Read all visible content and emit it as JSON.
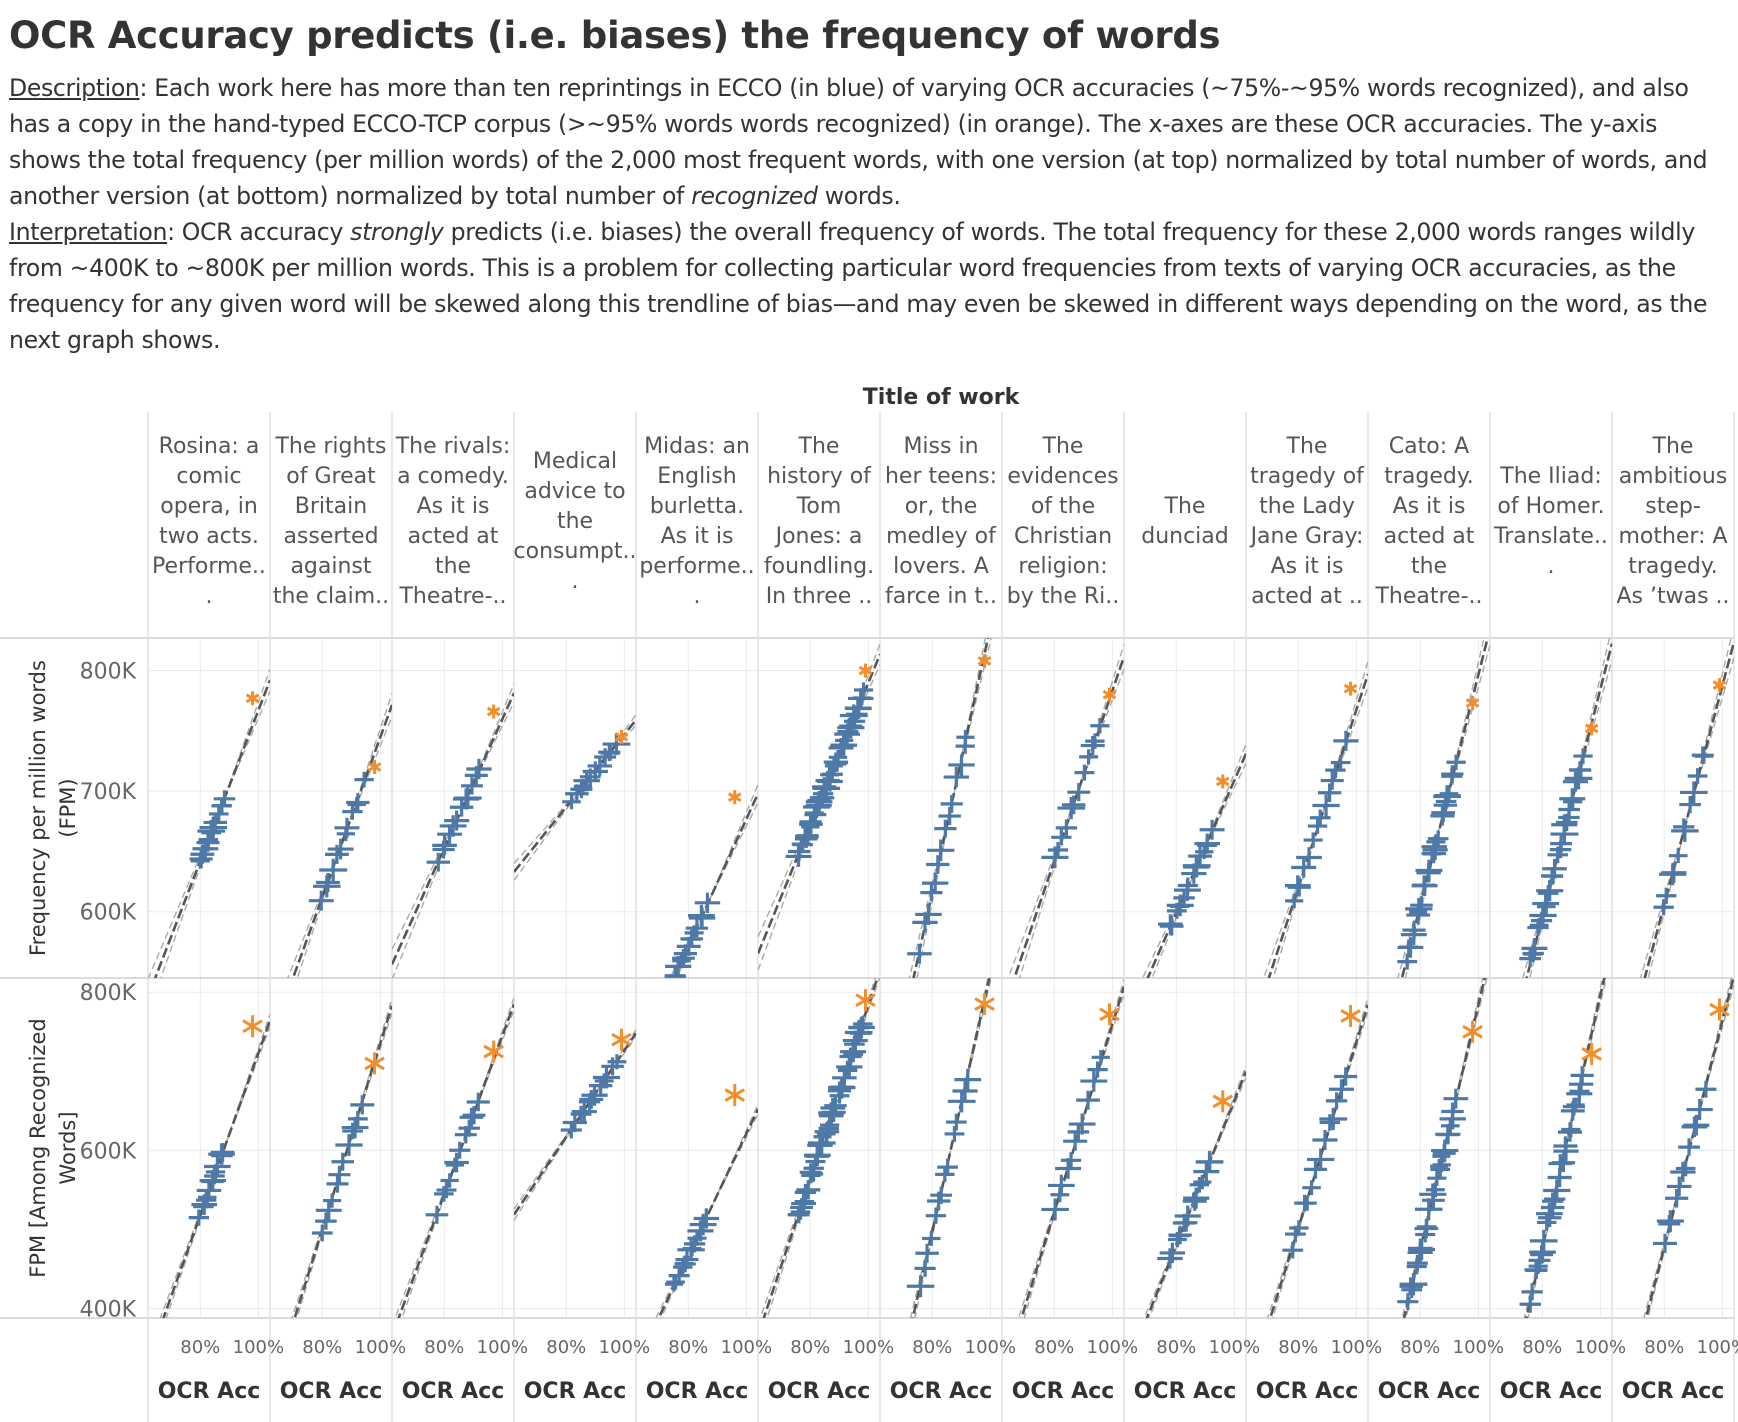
{
  "page": {
    "title": "OCR Accuracy predicts (i.e. biases) the frequency of words",
    "description": {
      "label": "Description",
      "text1": ": Each work here has more than ten reprintings in ECCO (in blue) of varying OCR accuracies (~75%-~95% words recognized), and also has a copy in the hand-typed ECCO-TCP corpus (>~95% words words recognized) (in orange). The x-axes are these OCR accuracies. The y-axis shows the total frequency (per million words) of the 2,000 most frequent words, with one version (at top) normalized by total number of words, and another version (at bottom) normalized by total number of ",
      "emph": "recognized",
      "text2": " words."
    },
    "interpretation": {
      "label": "Interpretation",
      "text1": ": OCR accuracy ",
      "emph": "strongly",
      "text2": " predicts (i.e. biases) the overall frequency of words. The total frequency for these 2,000 words ranges wildly from ~400K to ~800K per million words. This is a problem for collecting particular word frequencies from texts of varying OCR accuracies, as the frequency for any given word will be skewed along this trendline of bias—and may even be skewed in different ways depending on the word, as the next graph shows."
    }
  },
  "chart_data": {
    "type": "scatter",
    "column_header": "Title of work",
    "x_axis": {
      "label": "OCR Acc",
      "ticks": [
        "80%",
        "100%"
      ],
      "range": [
        0.62,
        1.04
      ]
    },
    "rows": [
      {
        "ylabel": [
          "Frequency per million words",
          "(FPM)"
        ],
        "ticks": [
          "800K",
          "700K",
          "600K"
        ],
        "tick_values": [
          800000,
          700000,
          600000
        ],
        "ylim": [
          545000,
          827000
        ]
      },
      {
        "ylabel": [
          "FPM [Among Recognized",
          "Words]"
        ],
        "ticks": [
          "800K",
          "600K",
          "400K"
        ],
        "tick_values": [
          800000,
          600000,
          400000
        ],
        "ylim": [
          388000,
          818000
        ]
      }
    ],
    "series": [
      {
        "name": "ECCO",
        "color": "#4e79a7",
        "marker": "plus"
      },
      {
        "name": "ECCO-TCP",
        "color": "#f28e2b",
        "marker": "asterisk"
      }
    ],
    "works": [
      {
        "title": [
          "Rosina: a",
          "comic",
          "opera, in",
          "two acts.",
          "Performe..",
          "."
        ],
        "ecco": [
          0.8,
          0.88
        ],
        "tcp": 0.98,
        "top": {
          "a": 642000,
          "b": 692000,
          "tcp": 777000,
          "n": 14
        },
        "bot": {
          "a": 518000,
          "b": 600000,
          "tcp": 757000,
          "n": 14
        }
      },
      {
        "title": [
          "The rights",
          "of Great",
          "Britain",
          "asserted",
          "against",
          "the claim.."
        ],
        "ecco": [
          0.8,
          0.94
        ],
        "tcp": 0.98,
        "top": {
          "a": 612000,
          "b": 705000,
          "tcp": 720000,
          "n": 12
        },
        "bot": {
          "a": 500000,
          "b": 665000,
          "tcp": 710000,
          "n": 12
        }
      },
      {
        "title": [
          "The rivals:",
          "a comedy.",
          "As it is",
          "acted at",
          "the",
          "Theatre-.."
        ],
        "ecco": [
          0.78,
          0.92
        ],
        "tcp": 0.97,
        "top": {
          "a": 642000,
          "b": 717000,
          "tcp": 766000,
          "n": 12
        },
        "bot": {
          "a": 525000,
          "b": 665000,
          "tcp": 725000,
          "n": 12
        }
      },
      {
        "title": [
          "Medical",
          "advice to",
          "the",
          "consumpt..",
          "."
        ],
        "ecco": [
          0.82,
          0.97
        ],
        "tcp": 0.99,
        "top": {
          "a": 693000,
          "b": 738000,
          "tcp": 745000,
          "n": 12
        },
        "bot": {
          "a": 628000,
          "b": 710000,
          "tcp": 740000,
          "n": 12
        }
      },
      {
        "title": [
          "Midas: an",
          "English",
          "burletta.",
          "As it is",
          "performe..",
          "."
        ],
        "ecco": [
          0.75,
          0.86
        ],
        "tcp": 0.96,
        "top": {
          "a": 545000,
          "b": 603000,
          "tcp": 695000,
          "n": 14
        },
        "bot": {
          "a": 428000,
          "b": 513000,
          "tcp": 670000,
          "n": 14
        }
      },
      {
        "title": [
          "The",
          "history of",
          "Tom",
          "Jones: a",
          "foundling.",
          "In three .."
        ],
        "ecco": [
          0.76,
          0.98
        ],
        "tcp": 0.99,
        "top": {
          "a": 648000,
          "b": 778000,
          "tcp": 800000,
          "n": 48
        },
        "bot": {
          "a": 520000,
          "b": 762000,
          "tcp": 790000,
          "n": 48
        }
      },
      {
        "title": [
          "Miss in",
          "her teens:",
          "or, the",
          "medley of",
          "lovers. A",
          "farce in t.."
        ],
        "ecco": [
          0.76,
          0.92
        ],
        "tcp": 0.98,
        "top": {
          "a": 572000,
          "b": 748000,
          "tcp": 808000,
          "n": 14
        },
        "bot": {
          "a": 432000,
          "b": 693000,
          "tcp": 785000,
          "n": 14
        }
      },
      {
        "title": [
          "The",
          "evidences",
          "of the",
          "Christian",
          "religion:",
          "by the Ri.."
        ],
        "ecco": [
          0.8,
          0.96
        ],
        "tcp": 0.99,
        "top": {
          "a": 642000,
          "b": 755000,
          "tcp": 780000,
          "n": 12
        },
        "bot": {
          "a": 522000,
          "b": 712000,
          "tcp": 772000,
          "n": 12
        }
      },
      {
        "title": [
          "The",
          "dunciad"
        ],
        "ecco": [
          0.78,
          0.92
        ],
        "tcp": 0.96,
        "top": {
          "a": 588000,
          "b": 665000,
          "tcp": 708000,
          "n": 16
        },
        "bot": {
          "a": 462000,
          "b": 590000,
          "tcp": 662000,
          "n": 16
        }
      },
      {
        "title": [
          "The",
          "tragedy of",
          "the Lady",
          "Jane Gray:",
          "As it is",
          "acted at .."
        ],
        "ecco": [
          0.78,
          0.96
        ],
        "tcp": 0.98,
        "top": {
          "a": 605000,
          "b": 738000,
          "tcp": 785000,
          "n": 14
        },
        "bot": {
          "a": 478000,
          "b": 690000,
          "tcp": 770000,
          "n": 14
        }
      },
      {
        "title": [
          "Cato: A",
          "tragedy.",
          "As it is",
          "acted at",
          "the",
          "Theatre-.."
        ],
        "ecco": [
          0.76,
          0.92
        ],
        "tcp": 0.98,
        "top": {
          "a": 567000,
          "b": 720000,
          "tcp": 773000,
          "n": 30
        },
        "bot": {
          "a": 412000,
          "b": 660000,
          "tcp": 750000,
          "n": 30
        }
      },
      {
        "title": [
          "The Iliad:",
          "of Homer.",
          "Translate..",
          "."
        ],
        "ecco": [
          0.76,
          0.94
        ],
        "tcp": 0.97,
        "top": {
          "a": 558000,
          "b": 728000,
          "tcp": 752000,
          "n": 30
        },
        "bot": {
          "a": 412000,
          "b": 700000,
          "tcp": 722000,
          "n": 30
        }
      },
      {
        "title": [
          "The",
          "ambitious",
          "step-",
          "mother: A",
          "tragedy.",
          "As ’twas .."
        ],
        "ecco": [
          0.8,
          0.94
        ],
        "tcp": 0.99,
        "top": {
          "a": 606000,
          "b": 733000,
          "tcp": 788000,
          "n": 12
        },
        "bot": {
          "a": 478000,
          "b": 678000,
          "tcp": 778000,
          "n": 12
        }
      }
    ]
  }
}
